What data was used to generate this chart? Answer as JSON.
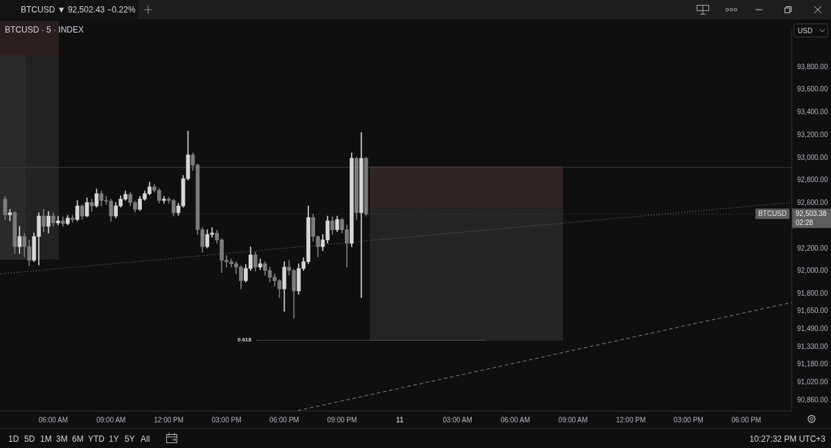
{
  "chart_data": {
    "type": "candlestick",
    "title": "BTCUSD · 5 · INDEX",
    "subtitle": "BTCUSD ▼ 92,502.43 −0.22%",
    "xlim": [
      "--01-10T03:14",
      "--01-11T20:21"
    ],
    "ylim": [
      90770,
      94136
    ],
    "xticks": [
      {
        "value": "--01-10T06:00",
        "label": "06:00 AM"
      },
      {
        "value": "--01-10T09:00",
        "label": "09:00 AM"
      },
      {
        "value": "--01-10T12:00",
        "label": "12:00 PM"
      },
      {
        "value": "--01-10T15:00",
        "label": "03:00 PM"
      },
      {
        "value": "--01-10T18:00",
        "label": "06:00 PM"
      },
      {
        "value": "--01-10T21:00",
        "label": "09:00 PM"
      },
      {
        "value": "--01-11T00:00",
        "label": "11"
      },
      {
        "value": "--01-11T03:00",
        "label": "03:00 AM"
      },
      {
        "value": "--01-11T06:00",
        "label": "06:00 AM"
      },
      {
        "value": "--01-11T09:00",
        "label": "09:00 AM"
      },
      {
        "value": "--01-11T12:00",
        "label": "12:00 PM"
      },
      {
        "value": "--01-11T15:00",
        "label": "03:00 PM"
      },
      {
        "value": "--01-11T18:00",
        "label": "06:00 PM"
      }
    ],
    "yticks": [
      {
        "value": 93800,
        "label": "93,800.00"
      },
      {
        "value": 93600,
        "label": "93,600.00"
      },
      {
        "value": 93400,
        "label": "93,400.00"
      },
      {
        "value": 93200,
        "label": "93,200.00"
      },
      {
        "value": 93000,
        "label": "93,000.00"
      },
      {
        "value": 92800,
        "label": "92,800.00"
      },
      {
        "value": 92600,
        "label": "92,600.00"
      },
      {
        "value": 92200,
        "label": "92,200.00"
      },
      {
        "value": 92000,
        "label": "92,000.00"
      },
      {
        "value": 91800,
        "label": "91,800.00"
      },
      {
        "value": 91650,
        "label": "91,650.00"
      },
      {
        "value": 91490,
        "label": "91,490.00"
      },
      {
        "value": 91330,
        "label": "91,330.00"
      },
      {
        "value": 91180,
        "label": "91,180.00"
      },
      {
        "value": 91020,
        "label": "91,020.00"
      },
      {
        "value": 90860,
        "label": "90,860.00"
      }
    ],
    "series": [
      {
        "type": "line",
        "color": "#8a8a8a",
        "line_style": "dotted",
        "x": [
          "--01-10T03:14",
          "--01-11T20:21"
        ],
        "values": [
          91976,
          92606
        ]
      },
      {
        "type": "line",
        "color": "#8a8a8a",
        "line_style": "dashed",
        "x": [
          "--01-10T18:42",
          "--01-11T20:21"
        ],
        "values": [
          90770,
          91724
        ]
      },
      {
        "colors": [
          "#7c7c7c",
          "#d6d6d6",
          "#7c7c7c",
          "#d6d6d6",
          "#7c7c7c",
          "#7c7c7c",
          "#d6d6d6",
          "#d6d6d6",
          "#7c7c7c",
          "#d6d6d6",
          "#7c7c7c",
          "#d6d6d6",
          "#7c7c7c",
          "#d6d6d6",
          "#7c7c7c",
          "#d6d6d6",
          "#7c7c7c",
          "#d6d6d6",
          "#7c7c7c",
          "#d6d6d6",
          "#7c7c7c",
          "#7c7c7c",
          "#7c7c7c",
          "#d6d6d6",
          "#d6d6d6",
          "#d6d6d6",
          "#7c7c7c",
          "#7c7c7c",
          "#d6d6d6",
          "#d6d6d6",
          "#d6d6d6",
          "#7c7c7c",
          "#7c7c7c",
          "#d6d6d6",
          "#7c7c7c",
          "#7c7c7c",
          "#d6d6d6",
          "#d6d6d6",
          "#d6d6d6",
          "#7c7c7c",
          "#7c7c7c",
          "#7c7c7c",
          "#d6d6d6",
          "#d6d6d6",
          "#7c7c7c",
          "#7c7c7c",
          "#7c7c7c",
          "#7c7c7c",
          "#7c7c7c",
          "#7c7c7c",
          "#d6d6d6",
          "#d6d6d6",
          "#7c7c7c",
          "#d6d6d6",
          "#7c7c7c",
          "#7c7c7c",
          "#7c7c7c",
          "#7c7c7c",
          "#d6d6d6",
          "#7c7c7c",
          "#7c7c7c",
          "#d6d6d6",
          "#d6d6d6",
          "#d6d6d6",
          "#7c7c7c",
          "#7c7c7c",
          "#d6d6d6",
          "#d6d6d6",
          "#7c7c7c",
          "#d6d6d6",
          "#7c7c7c",
          "#7c7c7c",
          "#d6d6d6",
          "#7c7c7c",
          "#d6d6d6",
          "#7c7c7c"
        ],
        "x": [
          "--01-10T03:30",
          "--01-10T03:45",
          "--01-10T04:00",
          "--01-10T04:15",
          "--01-10T04:30",
          "--01-10T04:45",
          "--01-10T05:00",
          "--01-10T05:15",
          "--01-10T05:30",
          "--01-10T05:45",
          "--01-10T06:00",
          "--01-10T06:15",
          "--01-10T06:30",
          "--01-10T06:45",
          "--01-10T07:00",
          "--01-10T07:15",
          "--01-10T07:30",
          "--01-10T07:45",
          "--01-10T08:00",
          "--01-10T08:15",
          "--01-10T08:30",
          "--01-10T08:45",
          "--01-10T09:00",
          "--01-10T09:15",
          "--01-10T09:30",
          "--01-10T09:45",
          "--01-10T10:00",
          "--01-10T10:15",
          "--01-10T10:30",
          "--01-10T10:45",
          "--01-10T11:00",
          "--01-10T11:15",
          "--01-10T11:30",
          "--01-10T11:45",
          "--01-10T12:00",
          "--01-10T12:15",
          "--01-10T12:30",
          "--01-10T12:45",
          "--01-10T13:00",
          "--01-10T13:15",
          "--01-10T13:30",
          "--01-10T13:45",
          "--01-10T14:00",
          "--01-10T14:15",
          "--01-10T14:30",
          "--01-10T14:45",
          "--01-10T15:00",
          "--01-10T15:15",
          "--01-10T15:30",
          "--01-10T15:45",
          "--01-10T16:00",
          "--01-10T16:15",
          "--01-10T16:30",
          "--01-10T16:45",
          "--01-10T17:00",
          "--01-10T17:15",
          "--01-10T17:30",
          "--01-10T17:45",
          "--01-10T18:00",
          "--01-10T18:15",
          "--01-10T18:30",
          "--01-10T18:45",
          "--01-10T19:00",
          "--01-10T19:15",
          "--01-10T19:30",
          "--01-10T19:45",
          "--01-10T20:00",
          "--01-10T20:15",
          "--01-10T20:30",
          "--01-10T20:45",
          "--01-10T21:00",
          "--01-10T21:15",
          "--01-10T21:30",
          "--01-10T21:45",
          "--01-10T22:00",
          "--01-10T22:15"
        ],
        "ohlc": [
          [
            92636,
            92660,
            92456,
            92498
          ],
          [
            92498,
            92546,
            92444,
            92516
          ],
          [
            92516,
            92528,
            92156,
            92216
          ],
          [
            92216,
            92396,
            92156,
            92306
          ],
          [
            92306,
            92336,
            92126,
            92216
          ],
          [
            92216,
            92276,
            92048,
            92096
          ],
          [
            92096,
            92336,
            92084,
            92306
          ],
          [
            92306,
            92516,
            92054,
            92486
          ],
          [
            92486,
            92546,
            92348,
            92396
          ],
          [
            92396,
            92528,
            92336,
            92486
          ],
          [
            92486,
            92516,
            92396,
            92426
          ],
          [
            92426,
            92486,
            92408,
            92444
          ],
          [
            92444,
            92480,
            92396,
            92420
          ],
          [
            92420,
            92492,
            92408,
            92468
          ],
          [
            92468,
            92492,
            92432,
            92456
          ],
          [
            92456,
            92624,
            92444,
            92576
          ],
          [
            92576,
            92588,
            92456,
            92486
          ],
          [
            92486,
            92648,
            92480,
            92606
          ],
          [
            92606,
            92636,
            92528,
            92576
          ],
          [
            92576,
            92726,
            92564,
            92684
          ],
          [
            92684,
            92708,
            92576,
            92624
          ],
          [
            92624,
            92660,
            92588,
            92618
          ],
          [
            92618,
            92636,
            92438,
            92486
          ],
          [
            92486,
            92606,
            92468,
            92576
          ],
          [
            92576,
            92666,
            92564,
            92636
          ],
          [
            92636,
            92708,
            92624,
            92678
          ],
          [
            92678,
            92696,
            92576,
            92606
          ],
          [
            92606,
            92618,
            92522,
            92546
          ],
          [
            92546,
            92660,
            92534,
            92636
          ],
          [
            92636,
            92708,
            92624,
            92684
          ],
          [
            92684,
            92786,
            92672,
            92744
          ],
          [
            92744,
            92768,
            92696,
            92714
          ],
          [
            92714,
            92732,
            92600,
            92624
          ],
          [
            92624,
            92660,
            92600,
            92636
          ],
          [
            92636,
            92654,
            92600,
            92624
          ],
          [
            92624,
            92636,
            92486,
            92516
          ],
          [
            92516,
            92600,
            92492,
            92576
          ],
          [
            92576,
            92846,
            92564,
            92816
          ],
          [
            92816,
            93236,
            92804,
            93026
          ],
          [
            93026,
            93044,
            92888,
            92936
          ],
          [
            92936,
            92948,
            92324,
            92366
          ],
          [
            92366,
            92384,
            92168,
            92216
          ],
          [
            92216,
            92366,
            92204,
            92324
          ],
          [
            92324,
            92384,
            92300,
            92336
          ],
          [
            92336,
            92360,
            92246,
            92276
          ],
          [
            92276,
            92288,
            91988,
            92096
          ],
          [
            92096,
            92138,
            92036,
            92084
          ],
          [
            92084,
            92108,
            92036,
            92066
          ],
          [
            92066,
            92084,
            91976,
            92036
          ],
          [
            92036,
            92048,
            91844,
            91916
          ],
          [
            91916,
            92060,
            91904,
            92024
          ],
          [
            92024,
            92216,
            92006,
            92144
          ],
          [
            92144,
            92168,
            92000,
            92036
          ],
          [
            92036,
            92108,
            92012,
            92066
          ],
          [
            92066,
            92084,
            91964,
            92006
          ],
          [
            92006,
            92036,
            91904,
            91946
          ],
          [
            91946,
            91976,
            91868,
            91916
          ],
          [
            91916,
            91928,
            91766,
            91844
          ],
          [
            91844,
            92084,
            91646,
            92036
          ],
          [
            92036,
            92096,
            91964,
            92006
          ],
          [
            92006,
            92018,
            91586,
            91826
          ],
          [
            91826,
            92066,
            91796,
            92024
          ],
          [
            92024,
            92120,
            92006,
            92084
          ],
          [
            92084,
            92576,
            92066,
            92474
          ],
          [
            92474,
            92504,
            92264,
            92306
          ],
          [
            92306,
            92312,
            92126,
            92216
          ],
          [
            92216,
            92324,
            92180,
            92276
          ],
          [
            92276,
            92486,
            92246,
            92444
          ],
          [
            92444,
            92480,
            92324,
            92366
          ],
          [
            92366,
            92486,
            92348,
            92456
          ],
          [
            92456,
            92468,
            92336,
            92366
          ],
          [
            92366,
            92408,
            92036,
            92246
          ],
          [
            92246,
            93044,
            92216,
            92996
          ],
          [
            92996,
            93008,
            92456,
            92516
          ],
          [
            92516,
            93224,
            91766,
            92996
          ],
          [
            92996,
            93008,
            92486,
            92503.38
          ]
        ]
      }
    ],
    "ref_lines": [
      {
        "axis": "y",
        "value": 92915,
        "color": "#4d3e3e",
        "line_style": "solid"
      },
      {
        "axis": "y",
        "value": 92503.38,
        "label": "BTCUSD",
        "color": "#4a4a4a",
        "line_style": "dotted"
      }
    ],
    "annotations": [
      "USD",
      "92,503.38",
      "02:28",
      "0.618",
      "1D",
      "5D",
      "1M",
      "3M",
      "6M",
      "YTD",
      "1Y",
      "5Y",
      "All",
      "10:27:32 PM UTC+3"
    ]
  }
}
